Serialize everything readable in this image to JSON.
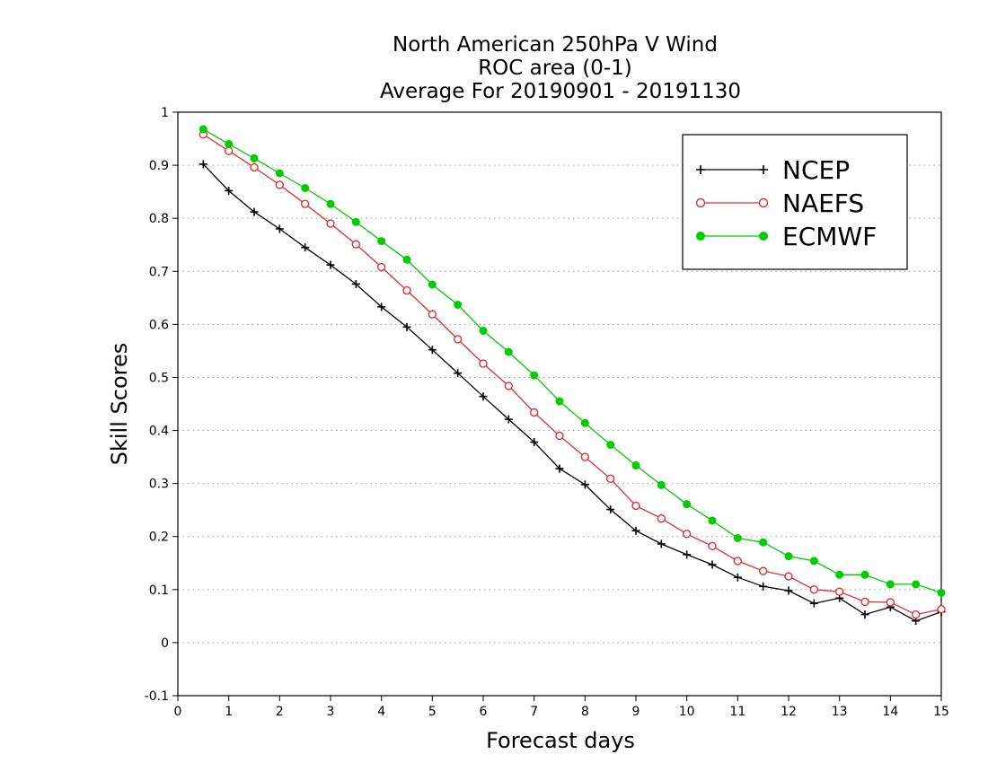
{
  "chart_data": {
    "type": "line",
    "title": [
      "North American 250hPa V Wind",
      "ROC area (0-1)",
      "Average For 20190901 - 20191130"
    ],
    "xlabel": "Forecast days",
    "ylabel": "Skill Scores",
    "xlim": [
      0,
      15
    ],
    "ylim": [
      -0.1,
      1
    ],
    "xticks": [
      "0",
      "1",
      "2",
      "3",
      "4",
      "5",
      "6",
      "7",
      "8",
      "9",
      "10",
      "11",
      "12",
      "13",
      "14",
      "15"
    ],
    "yticks": [
      "-0.1",
      "0",
      "0.1",
      "0.2",
      "0.3",
      "0.4",
      "0.5",
      "0.6",
      "0.7",
      "0.8",
      "0.9",
      "1"
    ],
    "grid": "horizontal dotted",
    "legend_position": "top-right",
    "x": [
      0.5,
      1,
      1.5,
      2,
      2.5,
      3,
      3.5,
      4,
      4.5,
      5,
      5.5,
      6,
      6.5,
      7,
      7.5,
      8,
      8.5,
      9,
      9.5,
      10,
      10.5,
      11,
      11.5,
      12,
      12.5,
      13,
      13.5,
      14,
      14.5,
      15
    ],
    "series": [
      {
        "name": "NCEP",
        "color": "#000000",
        "marker": "plus",
        "values": [
          0.902,
          0.852,
          0.812,
          0.78,
          0.745,
          0.712,
          0.676,
          0.633,
          0.595,
          0.552,
          0.508,
          0.464,
          0.421,
          0.378,
          0.328,
          0.298,
          0.251,
          0.211,
          0.186,
          0.166,
          0.147,
          0.123,
          0.106,
          0.098,
          0.074,
          0.084,
          0.053,
          0.067,
          0.041,
          0.058
        ]
      },
      {
        "name": "NAEFS",
        "color": "#e03030",
        "marker": "open-circle",
        "values": [
          0.958,
          0.927,
          0.896,
          0.863,
          0.827,
          0.79,
          0.751,
          0.708,
          0.664,
          0.619,
          0.572,
          0.526,
          0.484,
          0.434,
          0.39,
          0.35,
          0.309,
          0.258,
          0.234,
          0.205,
          0.182,
          0.154,
          0.135,
          0.125,
          0.1,
          0.096,
          0.077,
          0.076,
          0.053,
          0.063
        ]
      },
      {
        "name": "ECMWF",
        "color": "#00cc00",
        "marker": "filled-circle",
        "values": [
          0.968,
          0.94,
          0.913,
          0.885,
          0.857,
          0.827,
          0.793,
          0.757,
          0.722,
          0.675,
          0.637,
          0.588,
          0.548,
          0.504,
          0.455,
          0.414,
          0.373,
          0.334,
          0.297,
          0.261,
          0.23,
          0.197,
          0.189,
          0.163,
          0.154,
          0.128,
          0.128,
          0.11,
          0.11,
          0.094
        ]
      }
    ]
  }
}
